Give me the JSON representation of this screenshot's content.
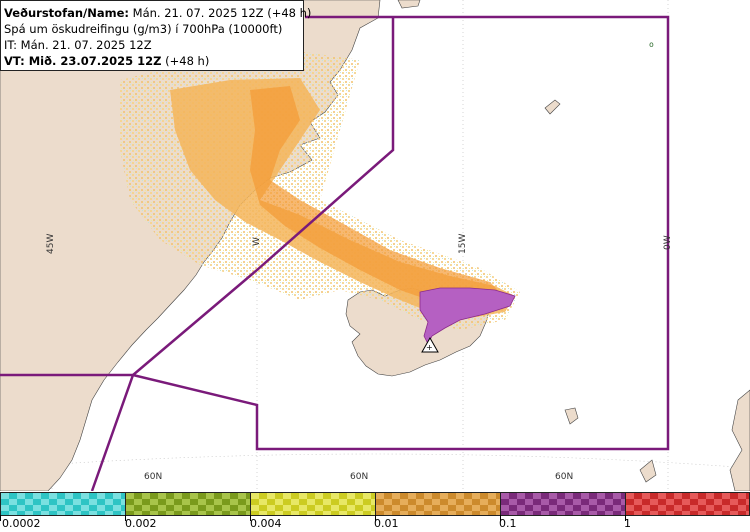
{
  "header": {
    "source_bold": "Veðurstofan/Name:",
    "issued": "Mán. 21. 07. 2025 12Z (+48 h)",
    "description": "Spá um öskudreifingu (g/m3) í 700hPa (10000ft)",
    "it_line": "IT: Mán. 21. 07. 2025 12Z",
    "vt_bold": "VT: Mið. 23.07.2025 12Z",
    "vt_offset": "(+48 h)"
  },
  "grid_labels": {
    "lon_45w": "45W",
    "lon_30w": "W",
    "lon_15w": "15W",
    "lon_0w": "0W",
    "lat_60n_a": "60N",
    "lat_60n_b": "60N",
    "lat_60n_c": "60N"
  },
  "marker": {
    "label": "+",
    "icon": "volcano-triangle-icon"
  },
  "legend": {
    "ticks": [
      "0.0002",
      "0.002",
      "0.004",
      "0.01",
      "0.1",
      "1"
    ],
    "colors": [
      "#33cccc",
      "#88aa22",
      "#dddd33",
      "#dd9933",
      "#993399",
      "#dd3333"
    ]
  },
  "colors": {
    "ocean": "#ffffff",
    "land": "#ecdccc",
    "boundary": "#7a1a7a",
    "ash_low": "#ffd27f",
    "ash_mid": "#f5a540",
    "ash_high": "#b565c0"
  }
}
